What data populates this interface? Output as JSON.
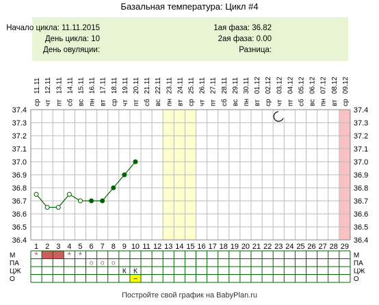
{
  "title": "Базальная температура: Цикл #4",
  "info": {
    "cycle_start": "Начало цикла: 11.11.2015",
    "cycle_day": "День цикла: 10",
    "ovulation_day": "День овуляции:",
    "phase1": "1ая фаза: 36.82",
    "phase2": "2ая фаза: 0.00",
    "difference": "Разница:"
  },
  "footer": "Постройте свой график на BabyPlan.ru",
  "colors": {
    "line": "#006400",
    "grid": "#bbbbbb",
    "highlight_yellow": "#ffffcc",
    "highlight_pink": "#f9c2c2",
    "menses": "#cd5c5c",
    "marker": "#ffff00"
  },
  "icons": {
    "moon": "crescent-moon-icon"
  },
  "chart_data": {
    "type": "line",
    "title": "Базальная температура: Цикл #4",
    "days": [
      1,
      2,
      3,
      4,
      5,
      6,
      7,
      8,
      9,
      10,
      11,
      12,
      13,
      14,
      15,
      16,
      17,
      18,
      19,
      20,
      21,
      22,
      23,
      24,
      25,
      26,
      27,
      28,
      29
    ],
    "weekdays": [
      "ср",
      "чт",
      "пт",
      "сб",
      "вс",
      "пн",
      "вт",
      "ср",
      "чт",
      "пт",
      "сб",
      "вс",
      "пн",
      "вт",
      "ср",
      "чт",
      "пт",
      "сб",
      "вс",
      "пн",
      "вт",
      "ср",
      "чт",
      "пт",
      "сб",
      "вс",
      "пн",
      "вт",
      "ср"
    ],
    "dates": [
      "11.11",
      "12.11",
      "13.11",
      "14.11",
      "15.11",
      "16.11",
      "17.11",
      "18.11",
      "19.11",
      "20.11",
      "21.11",
      "22.11",
      "23.11",
      "24.11",
      "25.11",
      "26.11",
      "27.11",
      "28.11",
      "29.11",
      "30.11",
      "01.12",
      "02.12",
      "03.12",
      "04.12",
      "05.12",
      "06.12",
      "07.12",
      "08.12",
      "09.12"
    ],
    "yticks": [
      "36.4",
      "36.5",
      "36.6",
      "36.7",
      "36.8",
      "36.9",
      "37.0",
      "37.1",
      "37.2",
      "37.3",
      "37.4"
    ],
    "ylim": [
      36.4,
      37.4
    ],
    "series": [
      {
        "x": [
          1,
          2,
          3,
          4,
          5,
          6,
          7,
          8,
          9,
          10
        ],
        "y": [
          36.75,
          36.65,
          36.65,
          36.75,
          36.7,
          36.7,
          36.7,
          36.8,
          36.9,
          37.0
        ],
        "hollow": [
          true,
          true,
          true,
          true,
          true,
          false,
          false,
          false,
          false,
          false
        ]
      }
    ],
    "highlight_days_yellow": [
      13,
      14,
      15
    ],
    "highlight_days_pink": [
      29
    ],
    "moon_day": 23,
    "grid": true,
    "rows": {
      "labels": [
        "М",
        "ПА",
        "ЦЖ",
        "О"
      ],
      "M": {
        "menses_days": [
          2,
          3
        ],
        "star_days": [
          1,
          4,
          5
        ]
      },
      "PA": {
        "circle_days": [
          6,
          7,
          8
        ]
      },
      "TsZh": {
        "day9": "К",
        "day10": "К"
      },
      "O": {
        "marker_day": 10,
        "marker_text": "–"
      }
    }
  }
}
